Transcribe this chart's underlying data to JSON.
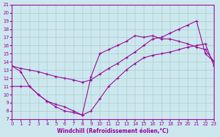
{
  "xlabel": "Windchill (Refroidissement éolien,°C)",
  "bg_color": "#cce8ee",
  "grid_color": "#aacccc",
  "line_color": "#990099",
  "xmin": 0,
  "xmax": 23,
  "ymin": 7,
  "ymax": 21,
  "line1_x": [
    0,
    1,
    2,
    3,
    4,
    5,
    6,
    7,
    8,
    9,
    10,
    11,
    12,
    13,
    14,
    15,
    16,
    17,
    18,
    19,
    20,
    21,
    22,
    23
  ],
  "line1_y": [
    13.5,
    12.8,
    11.0,
    10.0,
    9.2,
    8.5,
    8.0,
    7.8,
    7.5,
    12.2,
    15.0,
    15.5,
    16.0,
    16.5,
    17.2,
    17.0,
    17.2,
    16.8,
    16.8,
    16.5,
    16.2,
    15.8,
    15.5,
    14.0
  ],
  "line2_x": [
    0,
    1,
    2,
    3,
    4,
    5,
    6,
    7,
    8,
    9,
    10,
    11,
    12,
    13,
    14,
    15,
    16,
    17,
    18,
    19,
    20,
    21,
    22,
    23
  ],
  "line2_y": [
    13.5,
    13.2,
    13.0,
    12.8,
    12.5,
    12.2,
    12.0,
    11.8,
    11.5,
    11.8,
    12.5,
    13.2,
    13.8,
    14.5,
    15.2,
    16.0,
    16.8,
    17.0,
    17.5,
    18.0,
    18.5,
    19.0,
    15.0,
    14.0
  ],
  "line3_x": [
    0,
    1,
    2,
    3,
    4,
    5,
    6,
    7,
    8,
    9,
    10,
    11,
    12,
    13,
    14,
    15,
    16,
    17,
    18,
    19,
    20,
    21,
    22,
    23
  ],
  "line3_y": [
    11.0,
    11.0,
    11.0,
    10.0,
    9.2,
    8.8,
    8.5,
    8.0,
    7.5,
    8.0,
    9.5,
    11.0,
    12.0,
    13.0,
    13.8,
    14.5,
    14.8,
    15.0,
    15.2,
    15.5,
    15.8,
    16.0,
    16.2,
    13.5
  ],
  "line4_x": [
    0,
    23
  ],
  "line4_y": [
    11.0,
    13.5
  ]
}
